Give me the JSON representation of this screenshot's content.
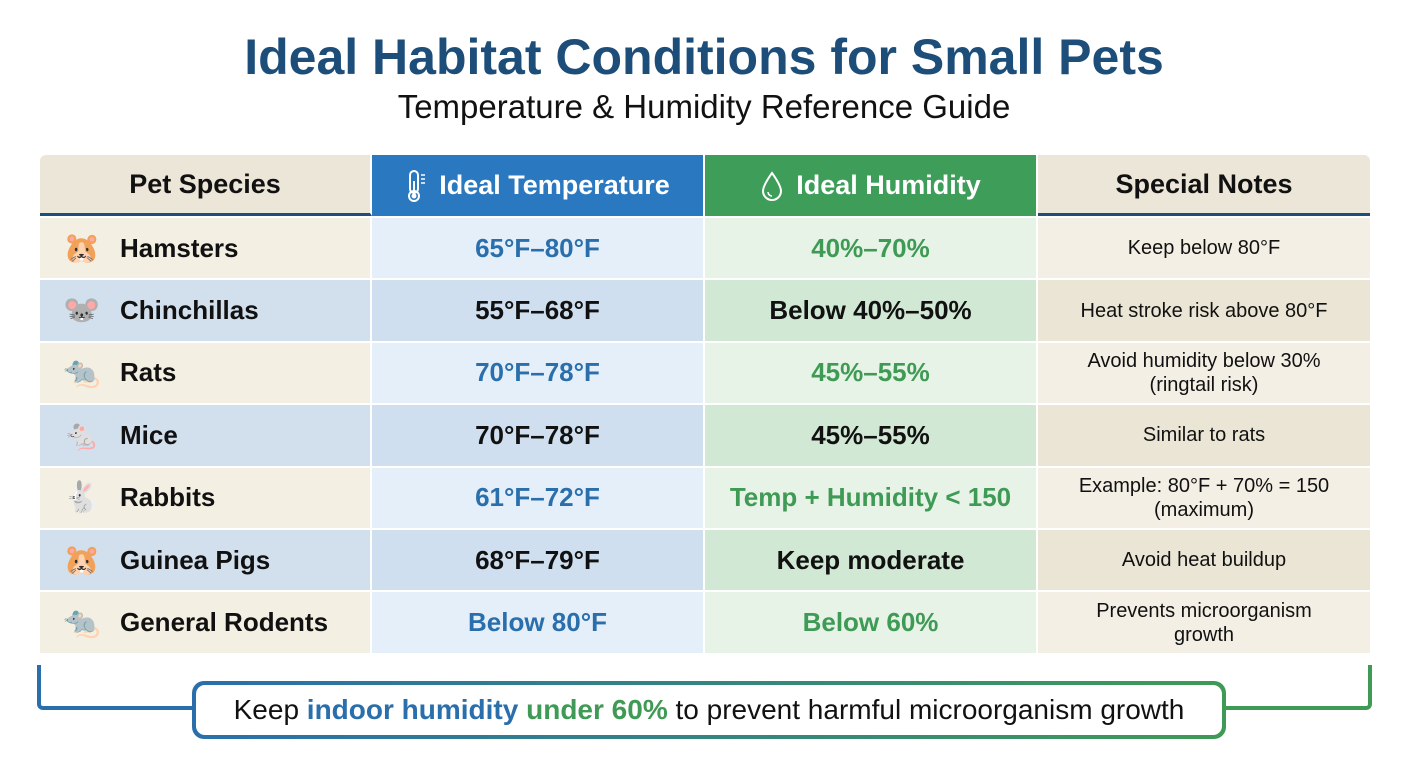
{
  "title": "Ideal Habitat Conditions for Small Pets",
  "subtitle": "Temperature & Humidity Reference Guide",
  "headers": {
    "species": "Pet Species",
    "temperature": "Ideal Temperature",
    "humidity": "Ideal Humidity",
    "notes": "Special Notes"
  },
  "header_icons": {
    "temperature": "thermometer-icon",
    "humidity": "droplet-icon"
  },
  "colors": {
    "blue": "#2a78c0",
    "green": "#3f9d5a",
    "navy": "#1d4e79"
  },
  "rows": [
    {
      "species": "Hamsters",
      "icon": "hamster-icon",
      "temperature": "65°F–80°F",
      "humidity": "40%–70%",
      "notes": "Keep below 80°F"
    },
    {
      "species": "Chinchillas",
      "icon": "chinchilla-icon",
      "temperature": "55°F–68°F",
      "humidity": "Below 40%–50%",
      "notes": "Heat stroke risk above 80°F"
    },
    {
      "species": "Rats",
      "icon": "rat-icon",
      "temperature": "70°F–78°F",
      "humidity": "45%–55%",
      "notes": "Avoid humidity below 30%\n(ringtail risk)"
    },
    {
      "species": "Mice",
      "icon": "mouse-icon",
      "temperature": "70°F–78°F",
      "humidity": "45%–55%",
      "notes": "Similar to rats"
    },
    {
      "species": "Rabbits",
      "icon": "rabbit-icon",
      "temperature": "61°F–72°F",
      "humidity": "Temp + Humidity < 150",
      "notes": "Example: 80°F + 70% = 150\n(maximum)"
    },
    {
      "species": "Guinea Pigs",
      "icon": "guinea-pig-icon",
      "temperature": "68°F–79°F",
      "humidity": "Keep moderate",
      "notes": "Avoid heat buildup"
    },
    {
      "species": "General Rodents",
      "icon": "rodent-icon",
      "temperature": "Below 80°F",
      "humidity": "Below 60%",
      "notes": "Prevents microorganism\ngrowth"
    }
  ],
  "callout": {
    "pre": "Keep ",
    "blue": "indoor humidity",
    "mid": " ",
    "green": "under 60%",
    "post": " to prevent harmful microorganism growth"
  }
}
